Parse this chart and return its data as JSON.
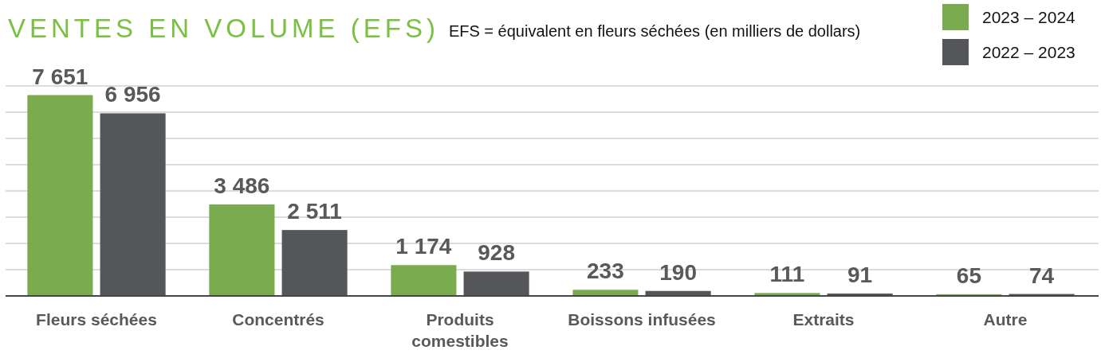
{
  "chart_data": {
    "type": "bar",
    "title": "VENTES EN VOLUME (EFS)",
    "subtitle": "EFS = équivalent en fleurs séchées (en milliers de dollars)",
    "categories": [
      "Fleurs séchées",
      "Concentrés",
      "Produits comestibles",
      "Boissons infusées",
      "Extraits",
      "Autre"
    ],
    "series": [
      {
        "name": "2023 – 2024",
        "color": "#7aab4e",
        "values": [
          7651,
          3486,
          1174,
          233,
          111,
          65
        ],
        "value_labels": [
          "7 651",
          "3 486",
          "1 174",
          "233",
          "111",
          "65"
        ]
      },
      {
        "name": "2022 – 2023",
        "color": "#55565a",
        "values": [
          6956,
          2511,
          928,
          190,
          91,
          74
        ],
        "value_labels": [
          "6 956",
          "2 511",
          "928",
          "190",
          "91",
          "74"
        ]
      }
    ],
    "ylim": [
      0,
      8000
    ],
    "yticks": [
      {
        "value": 1000,
        "label": null
      },
      {
        "value": 2000,
        "label": null
      },
      {
        "value": 3000,
        "label": null
      },
      {
        "value": 4000,
        "label": null
      },
      {
        "value": 5000,
        "label": null
      },
      {
        "value": 6000,
        "label": null
      },
      {
        "value": 7000,
        "label": null
      },
      {
        "value": 8000,
        "label": null
      }
    ],
    "grid": "y",
    "tick_labels": "x",
    "legend": "top right"
  }
}
